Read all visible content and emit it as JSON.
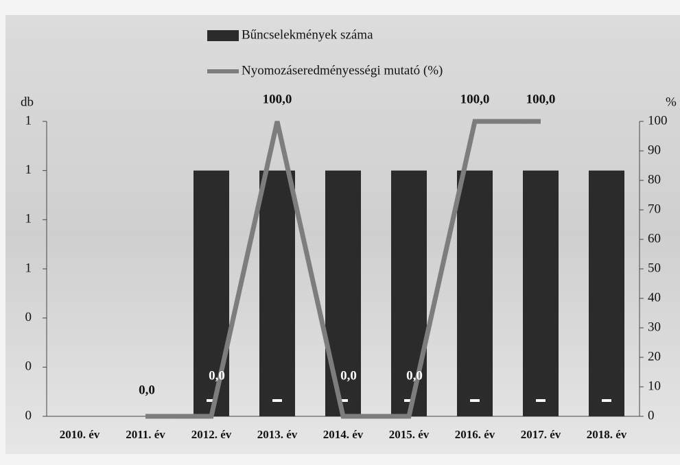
{
  "chart_data": {
    "type": "bar-line",
    "categories": [
      "2010. év",
      "2011. év",
      "2012. év",
      "2013. év",
      "2014. év",
      "2015. év",
      "2016. év",
      "2017. év",
      "2018. év"
    ],
    "series": [
      {
        "name": "Bűncselekmények száma",
        "type": "bar",
        "color": "#2b2b2b",
        "values": [
          null,
          null,
          1,
          1,
          1,
          1,
          1,
          1,
          1
        ]
      },
      {
        "name": "Nyomozáseredményességi mutató (%)",
        "type": "line",
        "axis": "y2",
        "color": "#7d7d7d",
        "values": [
          null,
          0,
          0,
          100,
          0,
          0,
          100,
          100,
          null
        ],
        "value_labels": [
          null,
          "0,0",
          "0,0",
          "100,0",
          "0,0",
          "0,0",
          "100,0",
          "100,0",
          null
        ]
      }
    ],
    "ylabel": "db",
    "y2label": "%",
    "ylim": [
      0,
      1.2
    ],
    "yticks": [
      {
        "value": 0,
        "label": "0"
      },
      {
        "value": 0.2,
        "label": "0"
      },
      {
        "value": 0.4,
        "label": "0"
      },
      {
        "value": 0.6,
        "label": "1"
      },
      {
        "value": 0.8,
        "label": "1"
      },
      {
        "value": 1.0,
        "label": "1"
      },
      {
        "value": 1.2,
        "label": "1"
      }
    ],
    "y2lim": [
      0,
      100
    ],
    "y2ticks": [
      0,
      10,
      20,
      30,
      40,
      50,
      60,
      70,
      80,
      90,
      100
    ]
  }
}
